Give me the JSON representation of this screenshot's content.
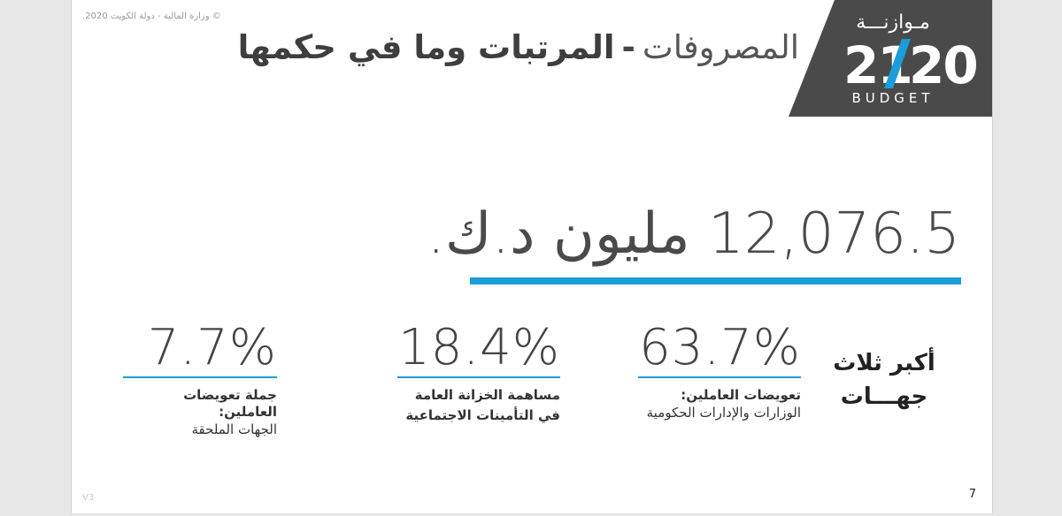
{
  "slide": {
    "copyright": "© وزارة المالية - دولة الكويت 2020.",
    "logo": {
      "word_top": "مـوازنـــة",
      "number": "2120",
      "word_bottom": "BUDGET",
      "bg_color": "#4a4a4a",
      "accent_color": "#1a9dd8"
    },
    "title": {
      "light": "المصروفات",
      "dash": "-",
      "bold": "المرتبات وما في حكمها"
    },
    "total": {
      "amount": "12,076.5",
      "unit": "مليون د.ك."
    },
    "top3_label": {
      "line1": "أكبر ثلاث",
      "line2": "جهـــات"
    },
    "stats": [
      {
        "percent": "63.7%",
        "value": 63.7,
        "caption_bold": "تعويضات العاملين:",
        "caption_line2": "الوزارات والإدارات الحكومية"
      },
      {
        "percent": "18.4%",
        "value": 18.4,
        "caption_bold": "مساهمة الخزانة العامة",
        "caption_line2": "في التأمينات الاجتماعية",
        "line2_bold": true
      },
      {
        "percent": "7.7%",
        "value": 7.7,
        "caption_bold": "جملة تعويضات العاملين:",
        "caption_line2": "الجهات الملحقة"
      }
    ],
    "page_number": "7",
    "version": "V3"
  },
  "colors": {
    "accent": "#1a9dd8",
    "text": "#444444",
    "background": "#ffffff"
  }
}
